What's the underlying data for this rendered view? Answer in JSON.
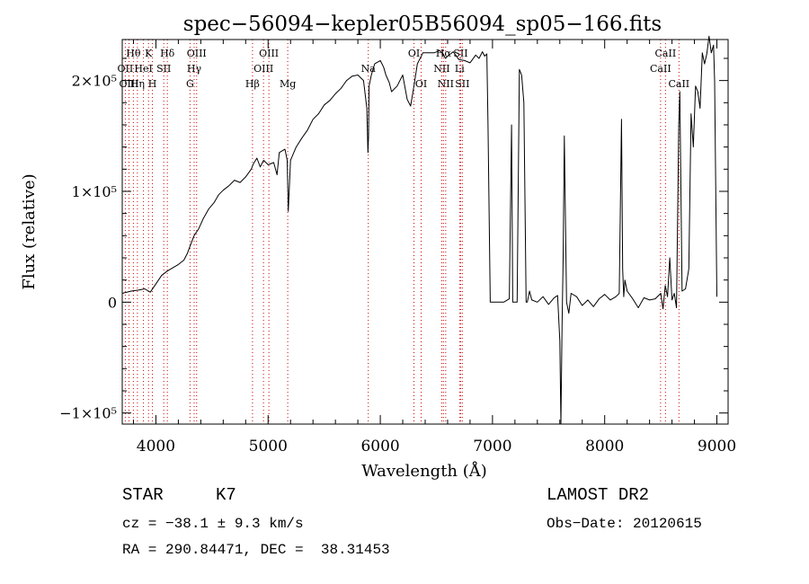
{
  "chart_data": {
    "type": "line",
    "title": "spec−56094−kepler05B56094_sp05−166.fits",
    "xlabel": "Wavelength (Å)",
    "ylabel": "Flux (relative)",
    "xlim": [
      3700,
      9100
    ],
    "ylim": [
      -110000,
      237000
    ],
    "x_ticks": [
      {
        "value": 4000,
        "label": "4000"
      },
      {
        "value": 5000,
        "label": "5000"
      },
      {
        "value": 6000,
        "label": "6000"
      },
      {
        "value": 7000,
        "label": "7000"
      },
      {
        "value": 8000,
        "label": "8000"
      },
      {
        "value": 9000,
        "label": "9000"
      }
    ],
    "y_ticks": [
      {
        "value": -100000,
        "label": "−1×10⁵"
      },
      {
        "value": 0,
        "label": "0"
      },
      {
        "value": 100000,
        "label": "1×10⁵"
      },
      {
        "value": 200000,
        "label": "2×10⁵"
      }
    ],
    "grid": false,
    "line_color": "#000000",
    "marker_color": "#cc0000",
    "series": [
      {
        "name": "flux",
        "x": [
          3700,
          3780,
          3850,
          3900,
          3950,
          3990,
          4050,
          4100,
          4150,
          4200,
          4250,
          4280,
          4310,
          4340,
          4380,
          4420,
          4470,
          4520,
          4560,
          4600,
          4650,
          4700,
          4750,
          4800,
          4850,
          4870,
          4900,
          4930,
          4960,
          5000,
          5050,
          5080,
          5100,
          5150,
          5170,
          5180,
          5200,
          5250,
          5300,
          5350,
          5400,
          5450,
          5500,
          5550,
          5600,
          5650,
          5700,
          5750,
          5800,
          5850,
          5880,
          5890,
          5895,
          5900,
          5920,
          5950,
          6000,
          6030,
          6050,
          6080,
          6100,
          6150,
          6200,
          6240,
          6270,
          6300,
          6330,
          6380,
          6430,
          6480,
          6530,
          6560,
          6580,
          6600,
          6650,
          6700,
          6750,
          6800,
          6850,
          6880,
          6910,
          6930,
          6950,
          6960,
          6980,
          7000,
          7100,
          7150,
          7170,
          7180,
          7200,
          7220,
          7240,
          7260,
          7280,
          7300,
          7310,
          7330,
          7350,
          7400,
          7450,
          7500,
          7550,
          7580,
          7600,
          7610,
          7620,
          7630,
          7640,
          7660,
          7680,
          7700,
          7750,
          7800,
          7850,
          7900,
          7950,
          8000,
          8050,
          8100,
          8130,
          8150,
          8160,
          8170,
          8180,
          8200,
          8250,
          8300,
          8350,
          8400,
          8450,
          8500,
          8520,
          8540,
          8560,
          8580,
          8600,
          8620,
          8640,
          8660,
          8670,
          8690,
          8720,
          8750,
          8770,
          8790,
          8810,
          8830,
          8850,
          8870,
          8890,
          8910,
          8930,
          8950,
          8970,
          8980,
          9000
        ],
        "y": [
          8000,
          10000,
          11000,
          12000,
          9000,
          15000,
          24000,
          28000,
          31000,
          34000,
          38000,
          44000,
          52000,
          60000,
          66000,
          75000,
          84000,
          90000,
          97000,
          101000,
          105000,
          110000,
          108000,
          113000,
          120000,
          125000,
          130000,
          122000,
          128000,
          124000,
          126000,
          115000,
          135000,
          138000,
          128000,
          82000,
          128000,
          140000,
          148000,
          155000,
          165000,
          170000,
          178000,
          182000,
          188000,
          193000,
          200000,
          204000,
          205000,
          200000,
          175000,
          135000,
          150000,
          195000,
          205000,
          215000,
          218000,
          212000,
          205000,
          198000,
          190000,
          195000,
          205000,
          183000,
          177000,
          195000,
          215000,
          225000,
          225000,
          225000,
          227000,
          224000,
          220000,
          222000,
          226000,
          219000,
          218000,
          216000,
          223000,
          220000,
          226000,
          222000,
          224000,
          160000,
          0,
          0,
          0,
          3000,
          160000,
          0,
          0,
          0,
          210000,
          205000,
          180000,
          0,
          0,
          10000,
          2000,
          0,
          5000,
          -2000,
          4000,
          6000,
          -35000,
          -110000,
          -20000,
          40000,
          150000,
          0,
          -10000,
          8000,
          5000,
          -3000,
          2000,
          -4000,
          3000,
          7000,
          2000,
          5000,
          8000,
          165000,
          30000,
          5000,
          20000,
          10000,
          3000,
          -5000,
          4000,
          2000,
          3000,
          8000,
          -6000,
          15000,
          5000,
          40000,
          2000,
          8000,
          -5000,
          160000,
          190000,
          10000,
          12000,
          30000,
          170000,
          140000,
          195000,
          190000,
          175000,
          225000,
          215000,
          224000,
          240000,
          225000,
          232000,
          200000,
          5000
        ]
      }
    ],
    "lines": [
      {
        "name": "Hθ",
        "w": 3799,
        "row": 1
      },
      {
        "name": "OII",
        "w": 3727,
        "row": 2
      },
      {
        "name": "OIII",
        "w": 3760,
        "row": 3
      },
      {
        "name": "Hη",
        "w": 3835,
        "row": 3
      },
      {
        "name": "K",
        "w": 3934,
        "row": 1
      },
      {
        "name": "H",
        "w": 3969,
        "row": 3
      },
      {
        "name": "HeI",
        "w": 3889,
        "row": 2
      },
      {
        "name": "SII",
        "w": 4070,
        "row": 2
      },
      {
        "name": "Hδ",
        "w": 4102,
        "row": 1
      },
      {
        "name": "OIII",
        "w": 4363,
        "row": 1
      },
      {
        "name": "Hγ",
        "w": 4341,
        "row": 2
      },
      {
        "name": "G",
        "w": 4304,
        "row": 3
      },
      {
        "name": "Hβ",
        "w": 4861,
        "row": 3
      },
      {
        "name": "OIII",
        "w": 4959,
        "row": 2
      },
      {
        "name": "OIII",
        "w": 5007,
        "row": 1
      },
      {
        "name": "Mg",
        "w": 5175,
        "row": 3
      },
      {
        "name": "Na",
        "w": 5893,
        "row": 2
      },
      {
        "name": "OI",
        "w": 6300,
        "row": 1
      },
      {
        "name": "OI",
        "w": 6364,
        "row": 3
      },
      {
        "name": "NII",
        "w": 6548,
        "row": 2
      },
      {
        "name": "Hα",
        "w": 6563,
        "row": 1
      },
      {
        "name": "NII",
        "w": 6583,
        "row": 3
      },
      {
        "name": "SII",
        "w": 6716,
        "row": 1
      },
      {
        "name": "Li",
        "w": 6707,
        "row": 2
      },
      {
        "name": "SII",
        "w": 6731,
        "row": 3
      },
      {
        "name": "CaII",
        "w": 8542,
        "row": 1
      },
      {
        "name": "CaII",
        "w": 8498,
        "row": 2
      },
      {
        "name": "CaII",
        "w": 8662,
        "row": 3
      }
    ]
  },
  "info": {
    "object_class": "STAR",
    "subclass": "K7",
    "survey": "LAMOST DR2",
    "cz": "cz = −38.1 ± 9.3 km/s",
    "obs_date": "Obs−Date: 20120615",
    "radec": "RA = 290.84471, DEC =  38.31453"
  }
}
